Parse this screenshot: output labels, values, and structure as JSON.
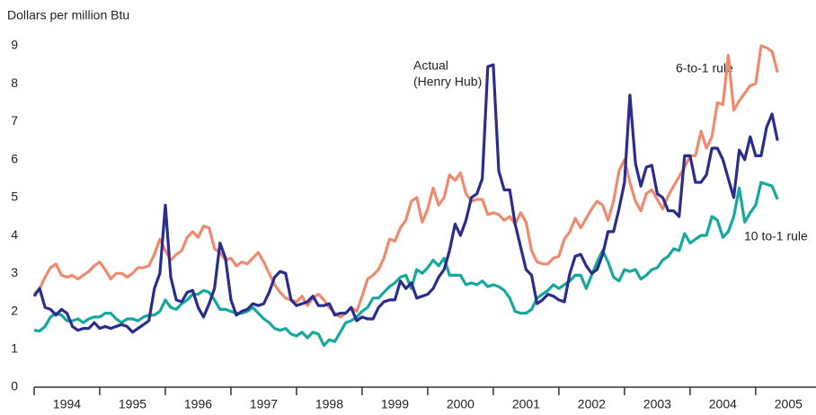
{
  "chart_data": {
    "type": "line",
    "ylabel": "Dollars per million Btu",
    "annotations": [
      "Actual",
      "(Henry Hub)"
    ],
    "xlim": [
      1994,
      2005.92
    ],
    "ylim": [
      0,
      9.4
    ],
    "yticks": [
      0,
      1,
      2,
      3,
      4,
      5,
      6,
      7,
      8,
      9
    ],
    "xticks": [
      1994,
      1995,
      1996,
      1997,
      1998,
      1999,
      2000,
      2001,
      2002,
      2003,
      2004,
      2005
    ],
    "xlabels": [
      {
        "value": 1994.5,
        "label": "1994"
      },
      {
        "value": 1995.5,
        "label": "1995"
      },
      {
        "value": 1996.5,
        "label": "1996"
      },
      {
        "value": 1997.5,
        "label": "1997"
      },
      {
        "value": 1998.5,
        "label": "1998"
      },
      {
        "value": 1999.5,
        "label": "1999"
      },
      {
        "value": 2000.5,
        "label": "2000"
      },
      {
        "value": 2001.5,
        "label": "2001"
      },
      {
        "value": 2002.5,
        "label": "2002"
      },
      {
        "value": 2003.5,
        "label": "2003"
      },
      {
        "value": 2004.5,
        "label": "2004"
      },
      {
        "value": 2005.5,
        "label": "2005"
      }
    ],
    "x": [
      1994,
      1994.083,
      1994.167,
      1994.25,
      1994.333,
      1994.417,
      1994.5,
      1994.583,
      1994.667,
      1994.75,
      1994.833,
      1994.917,
      1995,
      1995.083,
      1995.167,
      1995.25,
      1995.333,
      1995.417,
      1995.5,
      1995.583,
      1995.667,
      1995.75,
      1995.833,
      1995.917,
      1996,
      1996.083,
      1996.167,
      1996.25,
      1996.333,
      1996.417,
      1996.5,
      1996.583,
      1996.667,
      1996.75,
      1996.833,
      1996.917,
      1997,
      1997.083,
      1997.167,
      1997.25,
      1997.333,
      1997.417,
      1997.5,
      1997.583,
      1997.667,
      1997.75,
      1997.833,
      1997.917,
      1998,
      1998.083,
      1998.167,
      1998.25,
      1998.333,
      1998.417,
      1998.5,
      1998.583,
      1998.667,
      1998.75,
      1998.833,
      1998.917,
      1999,
      1999.083,
      1999.167,
      1999.25,
      1999.333,
      1999.417,
      1999.5,
      1999.583,
      1999.667,
      1999.75,
      1999.833,
      1999.917,
      2000,
      2000.083,
      2000.167,
      2000.25,
      2000.333,
      2000.417,
      2000.5,
      2000.583,
      2000.667,
      2000.75,
      2000.833,
      2000.917,
      2001,
      2001.083,
      2001.167,
      2001.25,
      2001.333,
      2001.417,
      2001.5,
      2001.583,
      2001.667,
      2001.75,
      2001.833,
      2001.917,
      2002,
      2002.083,
      2002.167,
      2002.25,
      2002.333,
      2002.417,
      2002.5,
      2002.583,
      2002.667,
      2002.75,
      2002.833,
      2002.917,
      2003,
      2003.083,
      2003.167,
      2003.25,
      2003.333,
      2003.417,
      2003.5,
      2003.583,
      2003.667,
      2003.75,
      2003.833,
      2003.917,
      2004,
      2004.083,
      2004.167,
      2004.25,
      2004.333,
      2004.417,
      2004.5,
      2004.583,
      2004.667,
      2004.75,
      2004.833,
      2004.917,
      2005,
      2005.083,
      2005.167,
      2005.25,
      2005.333
    ],
    "series": [
      {
        "color": "#ef8a6f",
        "name": "6-to-1 rule",
        "values": [
          2.45,
          2.6,
          2.9,
          3.15,
          3.25,
          2.95,
          2.9,
          2.95,
          2.85,
          2.95,
          3.05,
          3.2,
          3.3,
          3.1,
          2.85,
          3.0,
          3.0,
          2.9,
          3.0,
          3.15,
          3.15,
          3.2,
          3.5,
          3.9,
          3.6,
          3.35,
          3.5,
          3.6,
          3.95,
          4.1,
          3.95,
          4.25,
          4.2,
          3.65,
          3.55,
          3.35,
          3.4,
          3.2,
          3.3,
          3.25,
          3.4,
          3.55,
          3.3,
          3.0,
          2.7,
          2.5,
          2.35,
          2.3,
          2.25,
          2.4,
          2.15,
          2.35,
          2.45,
          2.3,
          2.1,
          1.95,
          1.85,
          1.95,
          2.1,
          2.0,
          2.4,
          2.85,
          2.95,
          3.1,
          3.4,
          3.9,
          3.85,
          4.2,
          4.4,
          4.9,
          5.0,
          4.35,
          4.7,
          5.25,
          4.8,
          5.0,
          5.6,
          5.45,
          5.65,
          5.1,
          4.9,
          4.95,
          4.95,
          4.55,
          4.6,
          4.55,
          4.4,
          4.5,
          4.3,
          4.6,
          4.35,
          3.6,
          3.3,
          3.25,
          3.25,
          3.4,
          3.45,
          3.9,
          4.1,
          4.45,
          4.2,
          4.45,
          4.7,
          4.9,
          4.8,
          4.4,
          4.9,
          5.7,
          6.0,
          5.4,
          4.9,
          4.65,
          5.1,
          5.2,
          4.95,
          4.7,
          5.05,
          5.3,
          5.55,
          5.8,
          6.1,
          6.1,
          6.75,
          6.3,
          6.6,
          7.5,
          7.45,
          8.75,
          7.3,
          7.55,
          7.75,
          7.95,
          8.0,
          9.0,
          8.95,
          8.85,
          8.3
        ]
      },
      {
        "color": "#16a89c",
        "name": "10 to-1 rule",
        "values": [
          1.5,
          1.48,
          1.6,
          1.85,
          1.95,
          1.9,
          1.75,
          1.75,
          1.8,
          1.7,
          1.8,
          1.85,
          1.85,
          1.95,
          1.95,
          1.8,
          1.7,
          1.8,
          1.8,
          1.75,
          1.85,
          1.9,
          1.9,
          2.0,
          2.3,
          2.1,
          2.05,
          2.2,
          2.3,
          2.45,
          2.45,
          2.55,
          2.5,
          2.3,
          2.05,
          2.05,
          2.0,
          1.95,
          1.95,
          2.0,
          2.1,
          1.95,
          1.8,
          1.7,
          1.55,
          1.5,
          1.55,
          1.4,
          1.35,
          1.45,
          1.3,
          1.45,
          1.4,
          1.1,
          1.25,
          1.2,
          1.45,
          1.7,
          1.75,
          1.85,
          2.0,
          2.1,
          2.35,
          2.35,
          2.5,
          2.65,
          2.75,
          2.9,
          2.95,
          2.6,
          3.1,
          3.0,
          3.15,
          3.35,
          3.2,
          3.4,
          2.95,
          2.95,
          2.95,
          2.7,
          2.75,
          2.7,
          2.8,
          2.65,
          2.7,
          2.65,
          2.55,
          2.35,
          2.0,
          1.95,
          1.95,
          2.05,
          2.35,
          2.45,
          2.55,
          2.7,
          2.6,
          2.7,
          2.8,
          2.95,
          2.95,
          2.6,
          2.95,
          3.3,
          3.6,
          3.3,
          2.9,
          2.8,
          3.1,
          3.05,
          3.1,
          2.85,
          2.95,
          3.1,
          3.15,
          3.35,
          3.45,
          3.65,
          3.6,
          4.05,
          3.8,
          3.9,
          4.0,
          4.0,
          4.5,
          4.4,
          3.95,
          4.1,
          4.5,
          5.25,
          4.35,
          4.6,
          4.8,
          5.4,
          5.35,
          5.3,
          4.95
        ]
      },
      {
        "color": "#2a2d8c",
        "values": [
          2.4,
          2.6,
          2.1,
          2.05,
          1.9,
          2.05,
          1.95,
          1.6,
          1.5,
          1.55,
          1.55,
          1.7,
          1.55,
          1.6,
          1.55,
          1.6,
          1.65,
          1.6,
          1.45,
          1.55,
          1.65,
          1.75,
          2.6,
          3.0,
          4.8,
          2.9,
          2.3,
          2.25,
          2.5,
          2.55,
          2.1,
          1.85,
          2.2,
          2.6,
          3.8,
          3.4,
          2.3,
          1.9,
          2.0,
          2.05,
          2.2,
          2.15,
          2.2,
          2.5,
          2.9,
          3.05,
          3.0,
          2.3,
          2.15,
          2.2,
          2.25,
          2.4,
          2.15,
          2.15,
          2.2,
          1.9,
          1.95,
          1.95,
          2.1,
          1.75,
          1.85,
          1.8,
          1.8,
          2.1,
          2.25,
          2.3,
          2.3,
          2.8,
          2.6,
          2.75,
          2.35,
          2.4,
          2.45,
          2.6,
          2.9,
          3.1,
          3.6,
          4.3,
          4.0,
          4.4,
          5.0,
          5.1,
          5.5,
          8.45,
          8.5,
          5.7,
          5.2,
          5.2,
          4.3,
          3.7,
          3.1,
          2.95,
          2.2,
          2.3,
          2.45,
          2.4,
          2.3,
          2.25,
          3.0,
          3.45,
          3.5,
          3.2,
          3.0,
          3.1,
          3.5,
          4.1,
          4.1,
          4.7,
          5.4,
          7.7,
          5.9,
          5.3,
          5.8,
          5.85,
          5.1,
          5.0,
          4.65,
          4.65,
          4.5,
          6.1,
          6.1,
          5.4,
          5.4,
          5.6,
          6.3,
          6.3,
          6.0,
          5.5,
          5.0,
          6.25,
          6.0,
          6.6,
          6.1,
          6.1,
          6.85,
          7.2,
          6.5
        ]
      }
    ]
  }
}
